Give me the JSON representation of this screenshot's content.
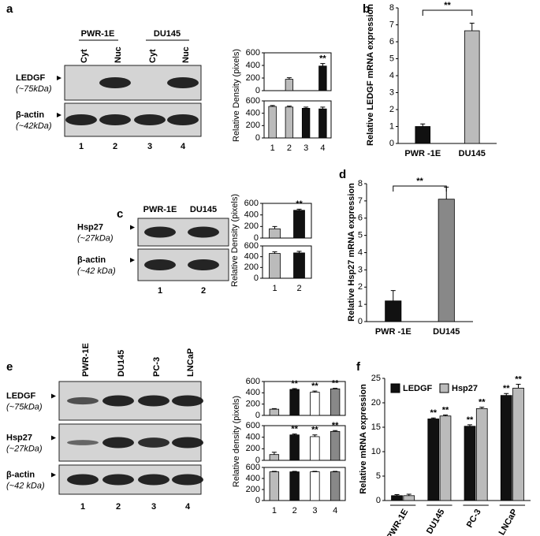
{
  "panel_labels": [
    "a",
    "b",
    "c",
    "d",
    "e",
    "f"
  ],
  "blots": {
    "a": {
      "groups": [
        "PWR-1E",
        "DU145"
      ],
      "lanes": [
        "Cyt",
        "Nuc",
        "Cyt",
        "Nuc"
      ],
      "rows": [
        {
          "label": "LEDGF",
          "sublabel": "(~75kDa)"
        },
        {
          "label": "β-actin",
          "sublabel": "(~42kDa)"
        }
      ],
      "lane_numbers": [
        "1",
        "2",
        "3",
        "4"
      ]
    },
    "c": {
      "lanes": [
        "PWR-1E",
        "DU145"
      ],
      "rows": [
        {
          "label": "Hsp27",
          "sublabel": "(~27kDa)"
        },
        {
          "label": "β-actin",
          "sublabel": "(~42 kDa)"
        }
      ],
      "lane_numbers": [
        "1",
        "2"
      ]
    },
    "e": {
      "lanes": [
        "PWR-1E",
        "DU145",
        "PC-3",
        "LNCaP"
      ],
      "rows": [
        {
          "label": "LEDGF",
          "sublabel": "(~75kDa)"
        },
        {
          "label": "Hsp27",
          "sublabel": "(~27kDa)"
        },
        {
          "label": "β-actin",
          "sublabel": "(~42 kDa)"
        }
      ],
      "lane_numbers": [
        "1",
        "2",
        "3",
        "4"
      ]
    }
  },
  "chart_data": [
    {
      "type": "bar",
      "categories": [
        null,
        null,
        null,
        null
      ],
      "values": [
        0,
        180,
        0,
        390
      ],
      "errors": [
        0,
        25,
        0,
        40
      ],
      "colors": [
        "#bbbbbb",
        "#bbbbbb",
        "#111111",
        "#111111"
      ],
      "significance": [
        null,
        null,
        null,
        "**"
      ],
      "ylim": [
        0,
        600
      ],
      "yticks": [
        0,
        200,
        400,
        600
      ],
      "box": true
    },
    {
      "type": "bar",
      "categories": [
        "1",
        "2",
        "3",
        "4"
      ],
      "values": [
        510,
        500,
        480,
        470
      ],
      "errors": [
        15,
        15,
        20,
        30
      ],
      "colors": [
        "#bbbbbb",
        "#bbbbbb",
        "#111111",
        "#111111"
      ],
      "ylim": [
        0,
        600
      ],
      "yticks": [
        0,
        200,
        400,
        600
      ],
      "box": true,
      "ylabel": "Relative Density (pixels)"
    },
    {
      "type": "bar",
      "categories": [
        "PWR -1E",
        "DU145"
      ],
      "values": [
        1.0,
        6.65
      ],
      "errors": [
        0.15,
        0.45
      ],
      "colors": [
        "#111111",
        "#bbbbbb"
      ],
      "ylim": [
        0,
        8
      ],
      "yticks": [
        0,
        1,
        2,
        3,
        4,
        5,
        6,
        7,
        8
      ],
      "ylabel": "Relative LEDGF mRNA expression",
      "bracket_label": "**"
    },
    {
      "type": "bar",
      "categories": [
        null,
        null
      ],
      "values": [
        160,
        480
      ],
      "errors": [
        40,
        20
      ],
      "colors": [
        "#bbbbbb",
        "#111111"
      ],
      "significance": [
        null,
        "**"
      ],
      "ylim": [
        0,
        600
      ],
      "yticks": [
        0,
        200,
        400,
        600
      ],
      "box": true
    },
    {
      "type": "bar",
      "categories": [
        "1",
        "2"
      ],
      "values": [
        460,
        470
      ],
      "errors": [
        30,
        30
      ],
      "colors": [
        "#bbbbbb",
        "#111111"
      ],
      "ylim": [
        0,
        600
      ],
      "yticks": [
        0,
        200,
        400,
        600
      ],
      "box": true,
      "ylabel": "Relative Density (pixels)"
    },
    {
      "type": "bar",
      "categories": [
        "PWR -1E",
        "DU145"
      ],
      "values": [
        1.2,
        7.1
      ],
      "errors": [
        0.6,
        0.7
      ],
      "colors": [
        "#111111",
        "#888888"
      ],
      "ylim": [
        0,
        8
      ],
      "yticks": [
        0,
        1,
        2,
        3,
        4,
        5,
        6,
        7,
        8
      ],
      "ylabel": "Relative Hsp27 mRNA expression",
      "bracket_label": "**"
    },
    {
      "type": "bar",
      "categories": [
        null,
        null,
        null,
        null
      ],
      "values": [
        110,
        460,
        410,
        470
      ],
      "errors": [
        10,
        15,
        20,
        10
      ],
      "colors": [
        "#bbbbbb",
        "#111111",
        "#ffffff",
        "#888888"
      ],
      "significance": [
        null,
        "**",
        "**",
        "**"
      ],
      "ylim": [
        0,
        600
      ],
      "yticks": [
        0,
        200,
        400,
        600
      ],
      "box": true
    },
    {
      "type": "bar",
      "categories": [
        null,
        null,
        null,
        null
      ],
      "values": [
        100,
        440,
        410,
        500
      ],
      "errors": [
        40,
        15,
        30,
        15
      ],
      "colors": [
        "#bbbbbb",
        "#111111",
        "#ffffff",
        "#888888"
      ],
      "significance": [
        null,
        "**",
        "**",
        "**"
      ],
      "ylim": [
        0,
        600
      ],
      "yticks": [
        0,
        200,
        400,
        600
      ],
      "box": true,
      "ylabel": "Relative density (pixels)"
    },
    {
      "type": "bar",
      "categories": [
        "1",
        "2",
        "3",
        "4"
      ],
      "values": [
        520,
        520,
        520,
        520
      ],
      "errors": [
        8,
        8,
        8,
        8
      ],
      "colors": [
        "#bbbbbb",
        "#111111",
        "#ffffff",
        "#888888"
      ],
      "ylim": [
        0,
        600
      ],
      "yticks": [
        0,
        200,
        400,
        600
      ],
      "box": true
    },
    {
      "type": "bar",
      "categories": [
        "PWR-1E",
        "DU145",
        "PC-3",
        "LNCaP"
      ],
      "series": [
        {
          "name": "LEDGF",
          "color": "#111111",
          "values": [
            1,
            16.7,
            15.2,
            21.5
          ],
          "errors": [
            0.2,
            0.2,
            0.3,
            0.4
          ],
          "significance": [
            null,
            "**",
            "**",
            "**"
          ]
        },
        {
          "name": "Hsp27",
          "color": "#bbbbbb",
          "values": [
            1,
            17.3,
            18.8,
            23
          ],
          "errors": [
            0.3,
            0.2,
            0.3,
            0.8
          ],
          "significance": [
            null,
            "**",
            "**",
            "**"
          ]
        }
      ],
      "ylim": [
        0,
        25
      ],
      "yticks": [
        0,
        5,
        10,
        15,
        20,
        25
      ],
      "ylabel": "Relative mRNA expression",
      "legend": "upper left"
    }
  ]
}
